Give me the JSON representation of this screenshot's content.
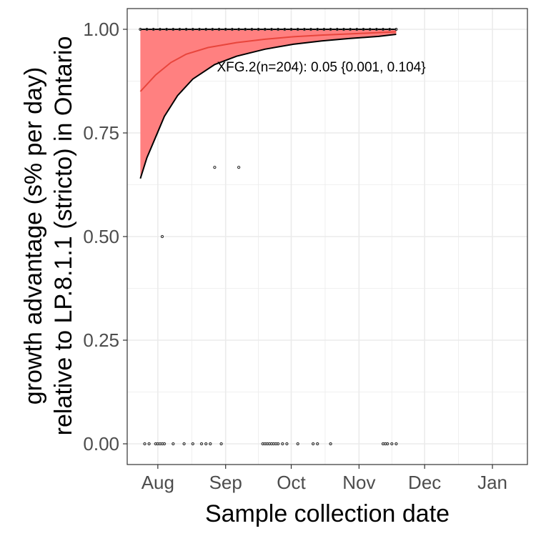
{
  "chart_data": {
    "type": "scatter",
    "title": "",
    "xlabel": "Sample collection date",
    "ylabel_lines": [
      "growth advantage (s% per day)",
      "relative to LP.8.1.1 (stricto) in Ontario"
    ],
    "x_ticks": [
      {
        "label": "Aug",
        "date": "2025-08-01"
      },
      {
        "label": "Sep",
        "date": "2025-09-01"
      },
      {
        "label": "Oct",
        "date": "2025-10-01"
      },
      {
        "label": "Nov",
        "date": "2025-11-01"
      },
      {
        "label": "Dec",
        "date": "2025-12-01"
      },
      {
        "label": "Jan",
        "date": "2026-01-01"
      }
    ],
    "y_ticks": [
      {
        "label": "0.00",
        "value": 0.0
      },
      {
        "label": "0.25",
        "value": 0.25
      },
      {
        "label": "0.50",
        "value": 0.5
      },
      {
        "label": "0.75",
        "value": 0.75
      },
      {
        "label": "1.00",
        "value": 1.0
      }
    ],
    "xlim": [
      "2025-07-18",
      "2026-01-17"
    ],
    "ylim": [
      -0.05,
      1.05
    ],
    "grid": true,
    "annotation": "XFG.2(n=204): 0.05 {0.001, 0.104}",
    "annotation_anchor": {
      "x": "2025-08-28",
      "y": 0.91
    },
    "fit_curve": [
      {
        "x": "2025-07-24",
        "y": 0.85
      },
      {
        "x": "2025-07-31",
        "y": 0.89
      },
      {
        "x": "2025-08-07",
        "y": 0.92
      },
      {
        "x": "2025-08-14",
        "y": 0.94
      },
      {
        "x": "2025-08-24",
        "y": 0.956
      },
      {
        "x": "2025-09-06",
        "y": 0.968
      },
      {
        "x": "2025-09-19",
        "y": 0.976
      },
      {
        "x": "2025-10-02",
        "y": 0.982
      },
      {
        "x": "2025-10-15",
        "y": 0.986
      },
      {
        "x": "2025-10-28",
        "y": 0.989
      },
      {
        "x": "2025-11-10",
        "y": 0.992
      },
      {
        "x": "2025-11-18",
        "y": 0.994
      }
    ],
    "ci_lower": [
      {
        "x": "2025-07-24",
        "y": 0.64
      },
      {
        "x": "2025-07-27",
        "y": 0.69
      },
      {
        "x": "2025-07-31",
        "y": 0.74
      },
      {
        "x": "2025-08-04",
        "y": 0.79
      },
      {
        "x": "2025-08-10",
        "y": 0.84
      },
      {
        "x": "2025-08-17",
        "y": 0.88
      },
      {
        "x": "2025-08-27",
        "y": 0.915
      },
      {
        "x": "2025-09-06",
        "y": 0.935
      },
      {
        "x": "2025-09-19",
        "y": 0.952
      },
      {
        "x": "2025-10-02",
        "y": 0.964
      },
      {
        "x": "2025-10-15",
        "y": 0.972
      },
      {
        "x": "2025-10-28",
        "y": 0.978
      },
      {
        "x": "2025-11-10",
        "y": 0.983
      },
      {
        "x": "2025-11-18",
        "y": 0.988
      }
    ],
    "ci_upper": [
      {
        "x": "2025-07-24",
        "y": 1.0
      },
      {
        "x": "2025-11-18",
        "y": 1.0
      }
    ],
    "points": [
      {
        "x": "2025-07-24",
        "y": 1.0
      },
      {
        "x": "2025-07-27",
        "y": 1.0
      },
      {
        "x": "2025-07-30",
        "y": 1.0
      },
      {
        "x": "2025-08-02",
        "y": 1.0
      },
      {
        "x": "2025-08-05",
        "y": 1.0
      },
      {
        "x": "2025-08-08",
        "y": 1.0
      },
      {
        "x": "2025-08-11",
        "y": 1.0
      },
      {
        "x": "2025-08-14",
        "y": 1.0
      },
      {
        "x": "2025-08-17",
        "y": 1.0
      },
      {
        "x": "2025-08-20",
        "y": 1.0
      },
      {
        "x": "2025-08-23",
        "y": 1.0
      },
      {
        "x": "2025-08-26",
        "y": 1.0
      },
      {
        "x": "2025-08-29",
        "y": 1.0
      },
      {
        "x": "2025-09-01",
        "y": 1.0
      },
      {
        "x": "2025-09-04",
        "y": 1.0
      },
      {
        "x": "2025-09-07",
        "y": 1.0
      },
      {
        "x": "2025-09-10",
        "y": 1.0
      },
      {
        "x": "2025-09-13",
        "y": 1.0
      },
      {
        "x": "2025-09-16",
        "y": 1.0
      },
      {
        "x": "2025-09-19",
        "y": 1.0
      },
      {
        "x": "2025-09-22",
        "y": 1.0
      },
      {
        "x": "2025-09-25",
        "y": 1.0
      },
      {
        "x": "2025-09-28",
        "y": 1.0
      },
      {
        "x": "2025-10-01",
        "y": 1.0
      },
      {
        "x": "2025-10-04",
        "y": 1.0
      },
      {
        "x": "2025-10-07",
        "y": 1.0
      },
      {
        "x": "2025-10-10",
        "y": 1.0
      },
      {
        "x": "2025-10-13",
        "y": 1.0
      },
      {
        "x": "2025-10-16",
        "y": 1.0
      },
      {
        "x": "2025-10-19",
        "y": 1.0
      },
      {
        "x": "2025-10-22",
        "y": 1.0
      },
      {
        "x": "2025-10-25",
        "y": 1.0
      },
      {
        "x": "2025-10-28",
        "y": 1.0
      },
      {
        "x": "2025-10-31",
        "y": 1.0
      },
      {
        "x": "2025-11-03",
        "y": 1.0
      },
      {
        "x": "2025-11-06",
        "y": 1.0
      },
      {
        "x": "2025-11-09",
        "y": 1.0
      },
      {
        "x": "2025-11-12",
        "y": 1.0
      },
      {
        "x": "2025-11-15",
        "y": 1.0
      },
      {
        "x": "2025-11-18",
        "y": 1.0
      },
      {
        "x": "2025-08-27",
        "y": 0.667
      },
      {
        "x": "2025-09-07",
        "y": 0.667
      },
      {
        "x": "2025-08-03",
        "y": 0.5
      },
      {
        "x": "2025-07-26",
        "y": 0.0
      },
      {
        "x": "2025-07-28",
        "y": 0.0
      },
      {
        "x": "2025-07-31",
        "y": 0.0
      },
      {
        "x": "2025-08-01",
        "y": 0.0
      },
      {
        "x": "2025-08-02",
        "y": 0.0
      },
      {
        "x": "2025-08-03",
        "y": 0.0
      },
      {
        "x": "2025-08-04",
        "y": 0.0
      },
      {
        "x": "2025-08-08",
        "y": 0.0
      },
      {
        "x": "2025-08-13",
        "y": 0.0
      },
      {
        "x": "2025-08-17",
        "y": 0.0
      },
      {
        "x": "2025-08-21",
        "y": 0.0
      },
      {
        "x": "2025-08-23",
        "y": 0.0
      },
      {
        "x": "2025-08-25",
        "y": 0.0
      },
      {
        "x": "2025-08-30",
        "y": 0.0
      },
      {
        "x": "2025-09-18",
        "y": 0.0
      },
      {
        "x": "2025-09-19",
        "y": 0.0
      },
      {
        "x": "2025-09-20",
        "y": 0.0
      },
      {
        "x": "2025-09-21",
        "y": 0.0
      },
      {
        "x": "2025-09-22",
        "y": 0.0
      },
      {
        "x": "2025-09-23",
        "y": 0.0
      },
      {
        "x": "2025-09-24",
        "y": 0.0
      },
      {
        "x": "2025-09-25",
        "y": 0.0
      },
      {
        "x": "2025-09-27",
        "y": 0.0
      },
      {
        "x": "2025-09-29",
        "y": 0.0
      },
      {
        "x": "2025-10-04",
        "y": 0.0
      },
      {
        "x": "2025-10-11",
        "y": 0.0
      },
      {
        "x": "2025-10-13",
        "y": 0.0
      },
      {
        "x": "2025-10-19",
        "y": 0.0
      },
      {
        "x": "2025-11-12",
        "y": 0.0
      },
      {
        "x": "2025-11-13",
        "y": 0.0
      },
      {
        "x": "2025-11-14",
        "y": 0.0
      },
      {
        "x": "2025-11-16",
        "y": 0.0
      },
      {
        "x": "2025-11-18",
        "y": 0.0
      }
    ],
    "colors": {
      "ribbon": "#ff8080",
      "fit_line": "#e8453c",
      "ci_line": "#000000",
      "points": "#333333",
      "grid": "#ebebeb",
      "panel_border": "#333333"
    }
  }
}
